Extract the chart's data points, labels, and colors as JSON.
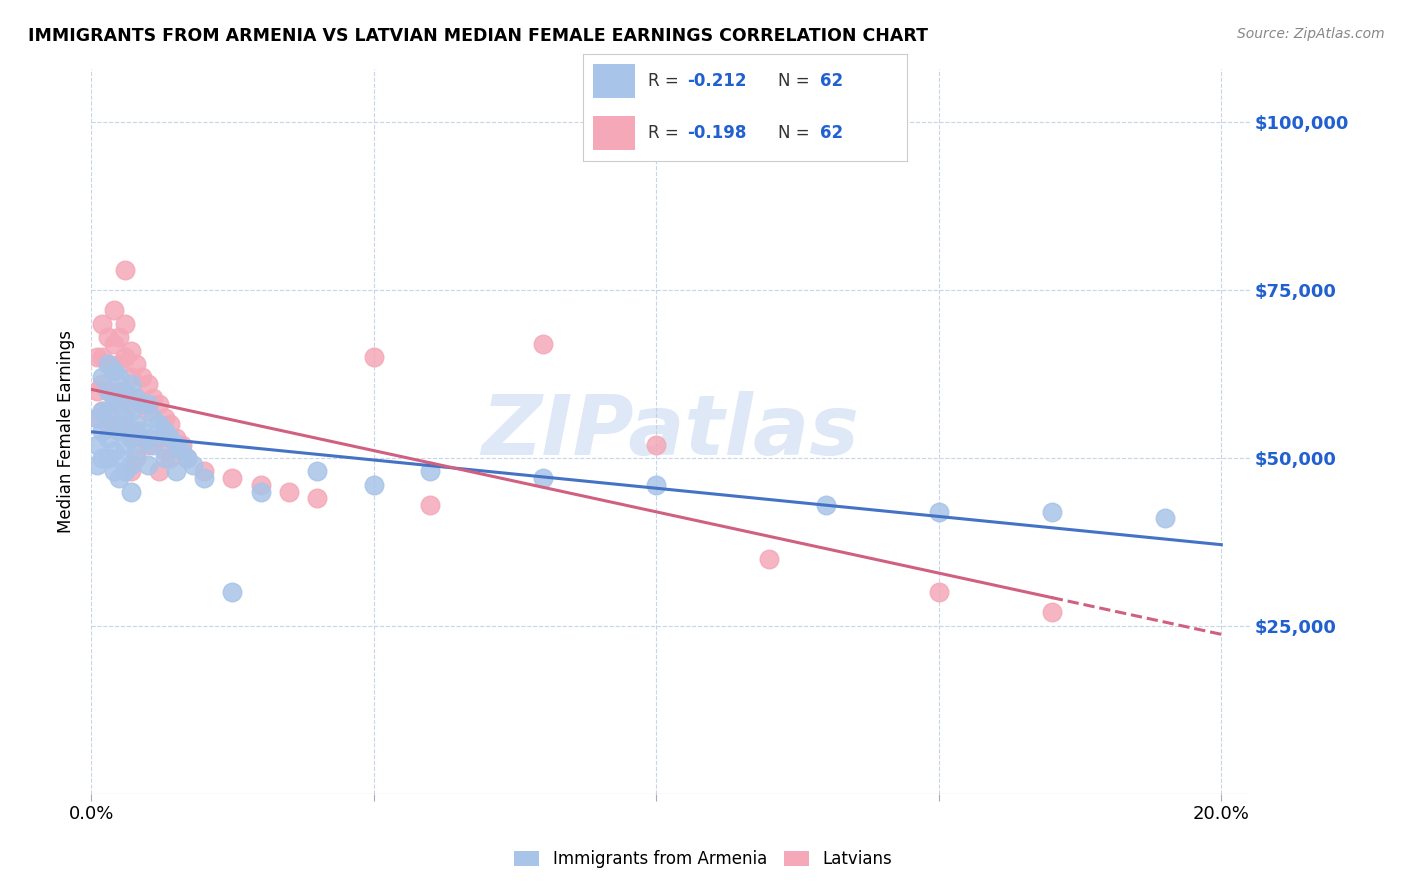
{
  "title": "IMMIGRANTS FROM ARMENIA VS LATVIAN MEDIAN FEMALE EARNINGS CORRELATION CHART",
  "source": "Source: ZipAtlas.com",
  "ylabel": "Median Female Earnings",
  "ytick_labels": [
    "$25,000",
    "$50,000",
    "$75,000",
    "$100,000"
  ],
  "ytick_values": [
    25000,
    50000,
    75000,
    100000
  ],
  "ylim": [
    0,
    108000
  ],
  "xlim": [
    0.0,
    0.205
  ],
  "color_armenia": "#a8c4e8",
  "color_latvian": "#f4a8b8",
  "color_text_blue": "#2060d0",
  "trendline_armenia_color": "#4472c4",
  "trendline_latvian_color": "#d06080",
  "background_color": "#ffffff",
  "watermark": "ZIPatlas",
  "armenia_scatter": [
    [
      0.001,
      56000
    ],
    [
      0.001,
      52000
    ],
    [
      0.001,
      49000
    ],
    [
      0.002,
      62000
    ],
    [
      0.002,
      57000
    ],
    [
      0.002,
      54000
    ],
    [
      0.002,
      50000
    ],
    [
      0.003,
      64000
    ],
    [
      0.003,
      60000
    ],
    [
      0.003,
      57000
    ],
    [
      0.003,
      53000
    ],
    [
      0.003,
      50000
    ],
    [
      0.004,
      63000
    ],
    [
      0.004,
      59000
    ],
    [
      0.004,
      55000
    ],
    [
      0.004,
      51000
    ],
    [
      0.004,
      48000
    ],
    [
      0.005,
      62000
    ],
    [
      0.005,
      58000
    ],
    [
      0.005,
      54000
    ],
    [
      0.005,
      50000
    ],
    [
      0.005,
      47000
    ],
    [
      0.006,
      60000
    ],
    [
      0.006,
      56000
    ],
    [
      0.006,
      52000
    ],
    [
      0.006,
      48000
    ],
    [
      0.007,
      61000
    ],
    [
      0.007,
      57000
    ],
    [
      0.007,
      53000
    ],
    [
      0.007,
      49000
    ],
    [
      0.007,
      45000
    ],
    [
      0.008,
      59000
    ],
    [
      0.008,
      55000
    ],
    [
      0.008,
      51000
    ],
    [
      0.009,
      58000
    ],
    [
      0.009,
      54000
    ],
    [
      0.01,
      58000
    ],
    [
      0.01,
      53000
    ],
    [
      0.01,
      49000
    ],
    [
      0.011,
      56000
    ],
    [
      0.011,
      52000
    ],
    [
      0.012,
      55000
    ],
    [
      0.013,
      54000
    ],
    [
      0.013,
      50000
    ],
    [
      0.014,
      53000
    ],
    [
      0.015,
      52000
    ],
    [
      0.015,
      48000
    ],
    [
      0.016,
      51000
    ],
    [
      0.017,
      50000
    ],
    [
      0.018,
      49000
    ],
    [
      0.02,
      47000
    ],
    [
      0.025,
      30000
    ],
    [
      0.03,
      45000
    ],
    [
      0.04,
      48000
    ],
    [
      0.05,
      46000
    ],
    [
      0.06,
      48000
    ],
    [
      0.08,
      47000
    ],
    [
      0.1,
      46000
    ],
    [
      0.13,
      43000
    ],
    [
      0.15,
      42000
    ],
    [
      0.17,
      42000
    ],
    [
      0.19,
      41000
    ]
  ],
  "latvian_scatter": [
    [
      0.001,
      65000
    ],
    [
      0.001,
      60000
    ],
    [
      0.001,
      56000
    ],
    [
      0.002,
      70000
    ],
    [
      0.002,
      65000
    ],
    [
      0.002,
      61000
    ],
    [
      0.002,
      57000
    ],
    [
      0.003,
      68000
    ],
    [
      0.003,
      64000
    ],
    [
      0.003,
      60000
    ],
    [
      0.003,
      55000
    ],
    [
      0.004,
      72000
    ],
    [
      0.004,
      67000
    ],
    [
      0.004,
      63000
    ],
    [
      0.004,
      58000
    ],
    [
      0.005,
      68000
    ],
    [
      0.005,
      64000
    ],
    [
      0.005,
      60000
    ],
    [
      0.005,
      55000
    ],
    [
      0.006,
      78000
    ],
    [
      0.006,
      70000
    ],
    [
      0.006,
      65000
    ],
    [
      0.006,
      60000
    ],
    [
      0.006,
      55000
    ],
    [
      0.007,
      66000
    ],
    [
      0.007,
      62000
    ],
    [
      0.007,
      58000
    ],
    [
      0.007,
      53000
    ],
    [
      0.007,
      48000
    ],
    [
      0.008,
      64000
    ],
    [
      0.008,
      59000
    ],
    [
      0.008,
      54000
    ],
    [
      0.008,
      50000
    ],
    [
      0.009,
      62000
    ],
    [
      0.009,
      58000
    ],
    [
      0.009,
      53000
    ],
    [
      0.01,
      61000
    ],
    [
      0.01,
      57000
    ],
    [
      0.01,
      52000
    ],
    [
      0.011,
      59000
    ],
    [
      0.012,
      58000
    ],
    [
      0.012,
      53000
    ],
    [
      0.012,
      48000
    ],
    [
      0.013,
      56000
    ],
    [
      0.013,
      51000
    ],
    [
      0.014,
      55000
    ],
    [
      0.014,
      50000
    ],
    [
      0.015,
      53000
    ],
    [
      0.016,
      52000
    ],
    [
      0.017,
      50000
    ],
    [
      0.02,
      48000
    ],
    [
      0.025,
      47000
    ],
    [
      0.03,
      46000
    ],
    [
      0.035,
      45000
    ],
    [
      0.04,
      44000
    ],
    [
      0.05,
      65000
    ],
    [
      0.06,
      43000
    ],
    [
      0.08,
      67000
    ],
    [
      0.1,
      52000
    ],
    [
      0.12,
      35000
    ],
    [
      0.15,
      30000
    ],
    [
      0.17,
      27000
    ]
  ],
  "xtick_vals": [
    0.0,
    0.05,
    0.1,
    0.15,
    0.2
  ],
  "xtick_labels": [
    "0.0%",
    "",
    "",
    "",
    "20.0%"
  ]
}
